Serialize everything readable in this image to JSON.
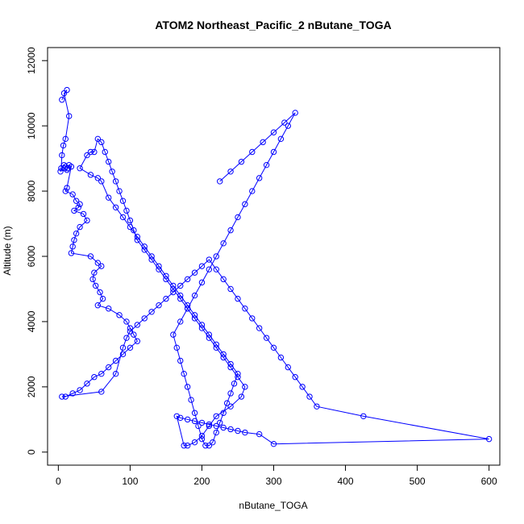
{
  "chart_data": {
    "type": "line",
    "title": "ATOM2 Northeast_Pacific_2 nButane_TOGA",
    "xlabel": "nButane_TOGA",
    "ylabel": "Altitude (m)",
    "xlim": [
      -15,
      615
    ],
    "ylim": [
      -400,
      12400
    ],
    "x_ticks": [
      0,
      100,
      200,
      300,
      400,
      500,
      600
    ],
    "y_ticks": [
      0,
      2000,
      4000,
      6000,
      8000,
      10000,
      12000
    ],
    "x_tick_labels": [
      "0",
      "100",
      "200",
      "300",
      "400",
      "500",
      "600"
    ],
    "y_tick_labels": [
      "0",
      "2000",
      "4000",
      "6000",
      "8000",
      "10000",
      "12000"
    ],
    "grid": false,
    "legend": "none",
    "series_color": "#0000ff",
    "series": [
      {
        "x": [
          5,
          12,
          8,
          15,
          10,
          7,
          5,
          4,
          3,
          8,
          10,
          9,
          12,
          13,
          15,
          18,
          12,
          10,
          20,
          25,
          30,
          28,
          22,
          35,
          40,
          30,
          25,
          22,
          20,
          18,
          45,
          55,
          60,
          50,
          48,
          52,
          58,
          62,
          55,
          70,
          85,
          95,
          100,
          105,
          110,
          100,
          90,
          80,
          70,
          60,
          50,
          40,
          30,
          20,
          10,
          5,
          60,
          80,
          90,
          95,
          100,
          110,
          120,
          130,
          140,
          150,
          160,
          170,
          180,
          190,
          200,
          210,
          220,
          230,
          240,
          250,
          260,
          270,
          280,
          290,
          300,
          310,
          320,
          330,
          340,
          350,
          360,
          425,
          600,
          300,
          280,
          260,
          250,
          240,
          230,
          220,
          210,
          200,
          190,
          180,
          170,
          165,
          175,
          180,
          190,
          200,
          210,
          220,
          240,
          255,
          260,
          250,
          240,
          230,
          220,
          210,
          200,
          190,
          180,
          170,
          160,
          150,
          140,
          130,
          120,
          110,
          105,
          100,
          95,
          90,
          85,
          80,
          75,
          70,
          65,
          60,
          55,
          50,
          45,
          40,
          30,
          45,
          55,
          60,
          70,
          80,
          90,
          100,
          110,
          120,
          130,
          140,
          150,
          160,
          170,
          180,
          190,
          200,
          210,
          220,
          230,
          240,
          250,
          245,
          240,
          235,
          230,
          225,
          220,
          215,
          210,
          205,
          200,
          195,
          190,
          185,
          180,
          175,
          170,
          165,
          160,
          170,
          180,
          190,
          200,
          210,
          220,
          230,
          240,
          250,
          260,
          270,
          280,
          290,
          300,
          310,
          320,
          330,
          315,
          300,
          285,
          270,
          255,
          240,
          225
        ],
        "y": [
          10800,
          11100,
          11000,
          10300,
          9600,
          9400,
          9100,
          8700,
          8600,
          8800,
          8750,
          8700,
          8650,
          8700,
          8800,
          8750,
          8100,
          8000,
          7900,
          7700,
          7600,
          7500,
          7400,
          7300,
          7100,
          6900,
          6700,
          6500,
          6300,
          6100,
          6000,
          5800,
          5700,
          5500,
          5300,
          5100,
          4900,
          4700,
          4500,
          4400,
          4200,
          4000,
          3800,
          3600,
          3400,
          3200,
          3000,
          2800,
          2600,
          2400,
          2300,
          2100,
          1900,
          1800,
          1700,
          1700,
          1850,
          2400,
          3200,
          3500,
          3700,
          3900,
          4100,
          4300,
          4500,
          4700,
          4900,
          5100,
          5300,
          5500,
          5700,
          5900,
          5600,
          5300,
          5000,
          4700,
          4400,
          4100,
          3800,
          3500,
          3200,
          2900,
          2600,
          2300,
          2000,
          1700,
          1400,
          1100,
          400,
          250,
          550,
          600,
          650,
          700,
          750,
          800,
          850,
          900,
          950,
          1000,
          1050,
          1100,
          200,
          200,
          300,
          500,
          800,
          1100,
          1400,
          1700,
          2000,
          2300,
          2600,
          2900,
          3200,
          3500,
          3800,
          4100,
          4400,
          4700,
          5000,
          5300,
          5600,
          5900,
          6200,
          6500,
          6800,
          7100,
          7400,
          7700,
          8000,
          8300,
          8600,
          8900,
          9200,
          9500,
          9600,
          9200,
          9200,
          9100,
          8700,
          8500,
          8400,
          8300,
          7800,
          7500,
          7200,
          6900,
          6600,
          6300,
          6000,
          5700,
          5400,
          5100,
          4800,
          4500,
          4200,
          3900,
          3600,
          3300,
          3000,
          2700,
          2400,
          2100,
          1800,
          1500,
          1200,
          900,
          600,
          300,
          200,
          200,
          400,
          800,
          1200,
          1600,
          2000,
          2400,
          2800,
          3200,
          3600,
          4000,
          4400,
          4800,
          5200,
          5600,
          6000,
          6400,
          6800,
          7200,
          7600,
          8000,
          8400,
          8800,
          9200,
          9600,
          10000,
          10400,
          10100,
          9800,
          9500,
          9200,
          8900,
          8600,
          8300
        ]
      }
    ]
  }
}
